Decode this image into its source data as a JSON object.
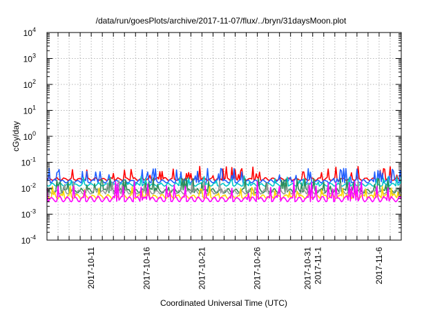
{
  "chart_data": {
    "type": "line",
    "title": "/data/run/goesPlots/archive/2017-11-07/flux/../bryn/31daysMoon.plot",
    "xlabel": "Coordinated Universal Time (UTC)",
    "ylabel": "cGy/day",
    "yscale": "log",
    "ylim": [
      0.0001,
      10000
    ],
    "xlim": [
      "2017-10-07",
      "2017-11-08"
    ],
    "y_ticks": [
      {
        "base": "10",
        "exp": "-4",
        "value": 0.0001
      },
      {
        "base": "10",
        "exp": "-3",
        "value": 0.001
      },
      {
        "base": "10",
        "exp": "-2",
        "value": 0.01
      },
      {
        "base": "10",
        "exp": "-1",
        "value": 0.1
      },
      {
        "base": "10",
        "exp": "0",
        "value": 1
      },
      {
        "base": "10",
        "exp": "1",
        "value": 10
      },
      {
        "base": "10",
        "exp": "2",
        "value": 100
      },
      {
        "base": "10",
        "exp": "3",
        "value": 1000
      },
      {
        "base": "10",
        "exp": "4",
        "value": 10000
      }
    ],
    "x_tick_labels": [
      {
        "date": "2017-10-11",
        "lines": [
          "2017-10-11"
        ]
      },
      {
        "date": "2017-10-16",
        "lines": [
          "2017-10-16"
        ]
      },
      {
        "date": "2017-10-21",
        "lines": [
          "2017-10-21"
        ]
      },
      {
        "date": "2017-10-26",
        "lines": [
          "2017-10-26"
        ]
      },
      {
        "date": "2017-10-31",
        "lines": [
          "2017-10-31",
          "2017-11-1"
        ]
      },
      {
        "date": "2017-11-06",
        "lines": [
          "2017-11-6"
        ]
      }
    ],
    "grid": true,
    "series": [
      {
        "color": "#ff0000",
        "base_level": 0.026,
        "low_level": 0.02,
        "spike_max": 0.07
      },
      {
        "color": "#1f5fff",
        "base_level": 0.022,
        "low_level": 0.016,
        "spike_max": 0.06
      },
      {
        "color": "#00c8c8",
        "base_level": 0.016,
        "low_level": 0.012,
        "spike_max": 0.03
      },
      {
        "color": "#2e8b57",
        "base_level": 0.01,
        "low_level": 0.0065,
        "spike_max": 0.025
      },
      {
        "color": "#9a9a9a",
        "base_level": 0.009,
        "low_level": 0.006,
        "spike_max": 0.02
      },
      {
        "color": "#ffd700",
        "base_level": 0.006,
        "low_level": 0.004,
        "spike_max": 0.012
      },
      {
        "color": "#ff00ff",
        "base_level": 0.005,
        "low_level": 0.003,
        "spike_max": 0.02
      }
    ]
  }
}
